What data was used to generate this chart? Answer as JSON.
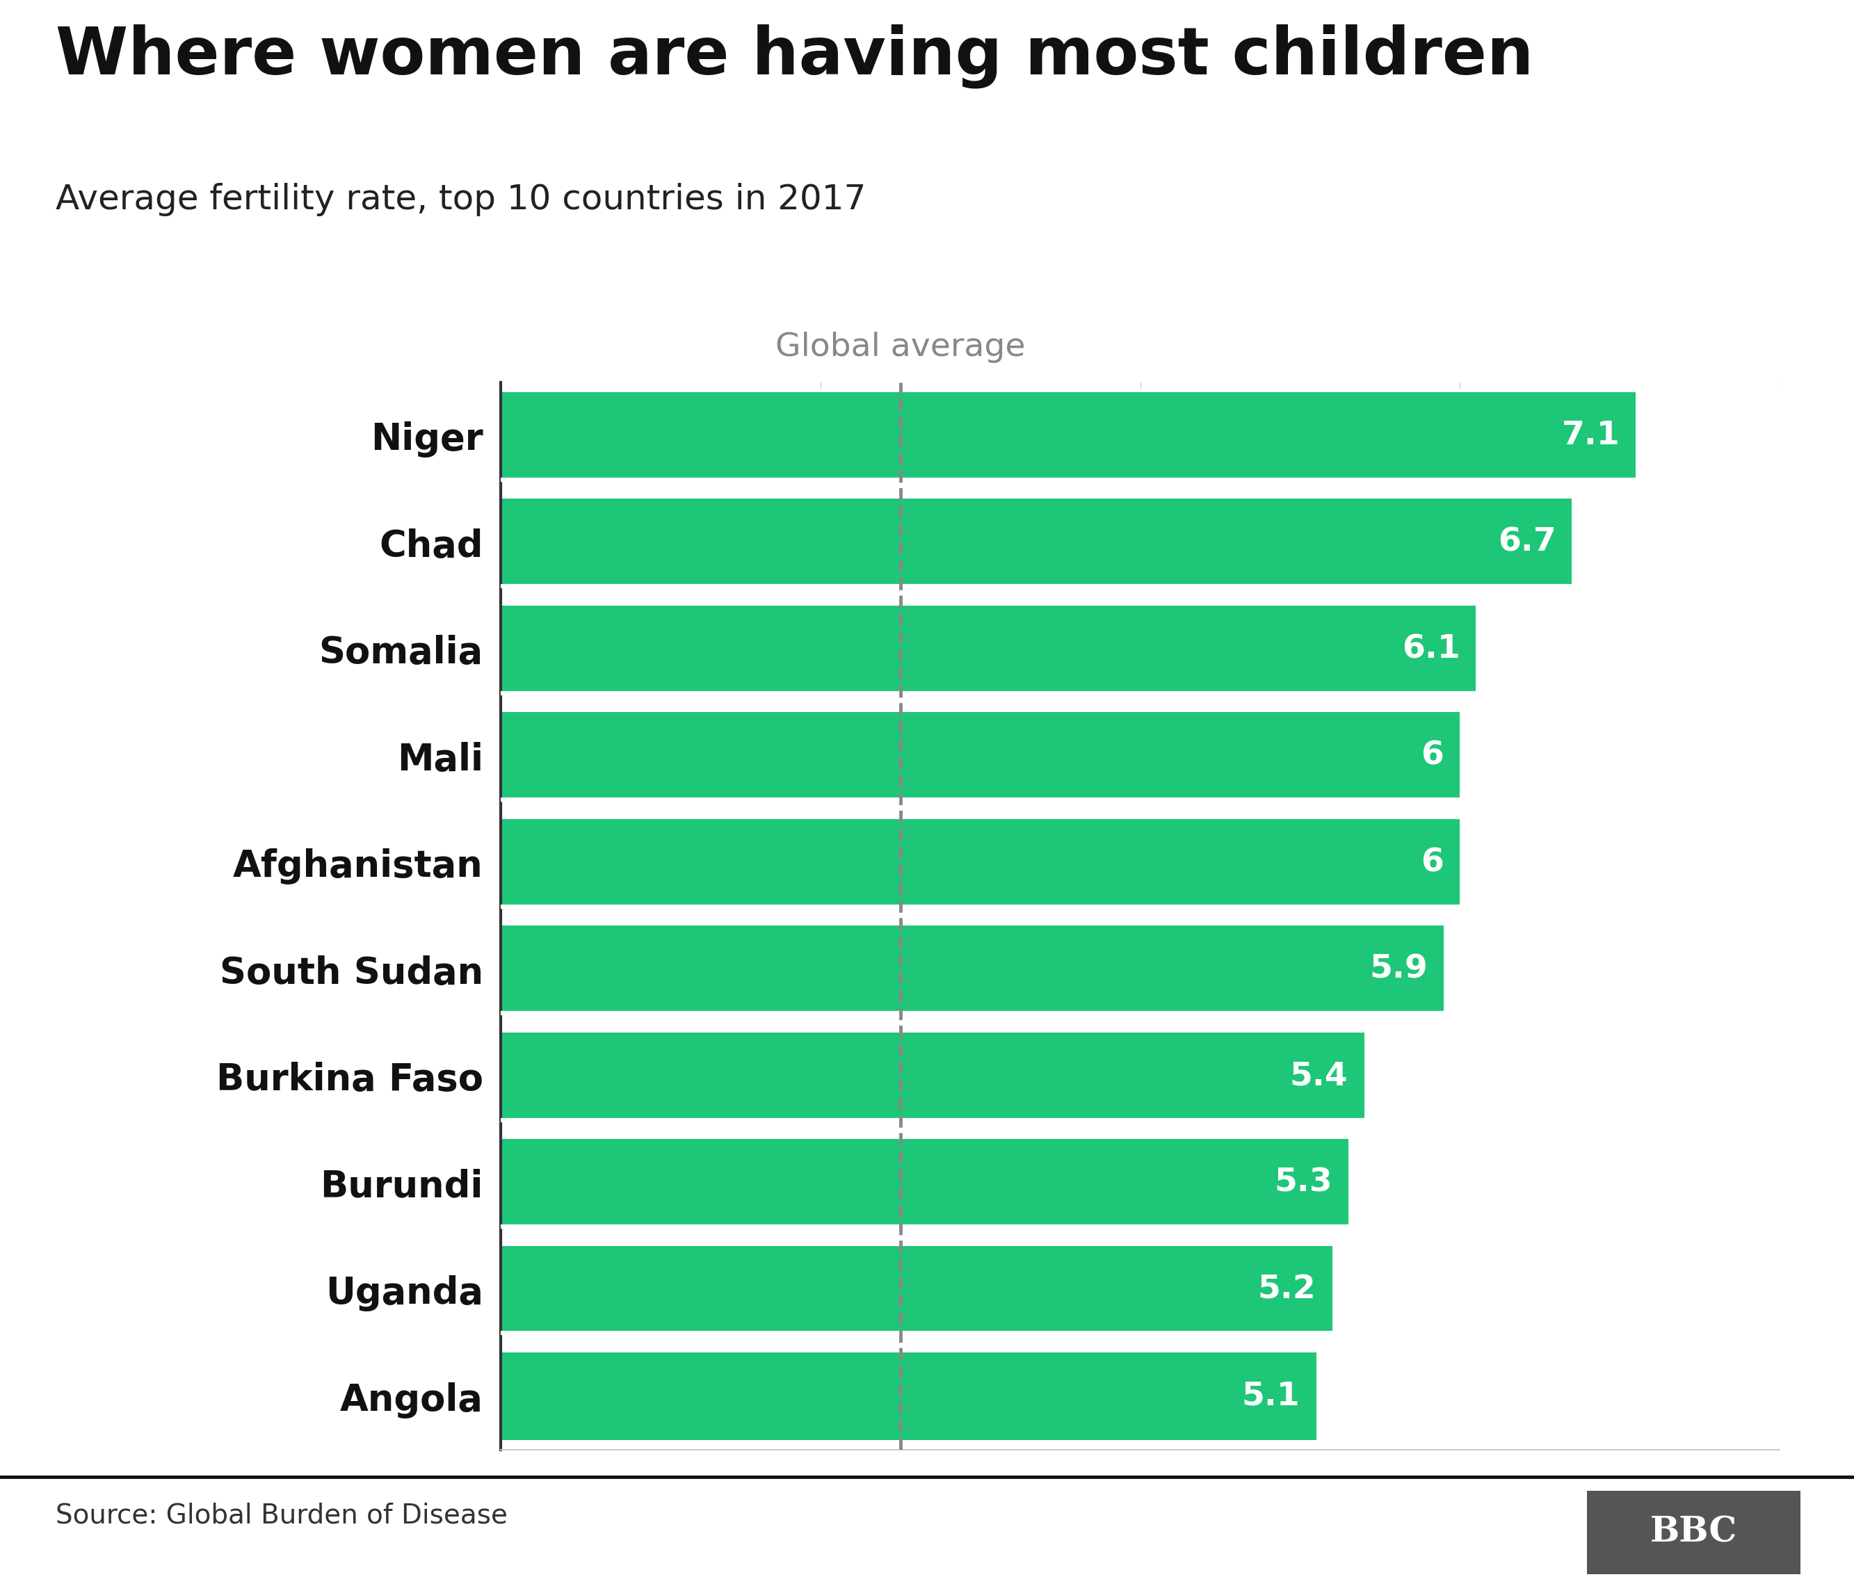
{
  "title": "Where women are having most children",
  "subtitle": "Average fertility rate, top 10 countries in 2017",
  "source": "Source: Global Burden of Disease",
  "categories": [
    "Niger",
    "Chad",
    "Somalia",
    "Mali",
    "Afghanistan",
    "South Sudan",
    "Burkina Faso",
    "Burundi",
    "Uganda",
    "Angola"
  ],
  "values": [
    7.1,
    6.7,
    6.1,
    6.0,
    6.0,
    5.9,
    5.4,
    5.3,
    5.2,
    5.1
  ],
  "bar_color": "#1EC677",
  "bar_label_color": "#ffffff",
  "global_average": 2.5,
  "global_average_label": "Global average",
  "global_average_color": "#888888",
  "xlim": [
    0,
    8
  ],
  "background_color": "#ffffff",
  "title_fontsize": 68,
  "subtitle_fontsize": 36,
  "label_fontsize": 38,
  "value_fontsize": 34,
  "source_fontsize": 28,
  "bbc_box_color": "#555555",
  "bbc_text_color": "#ffffff",
  "bbc_fontsize": 36
}
